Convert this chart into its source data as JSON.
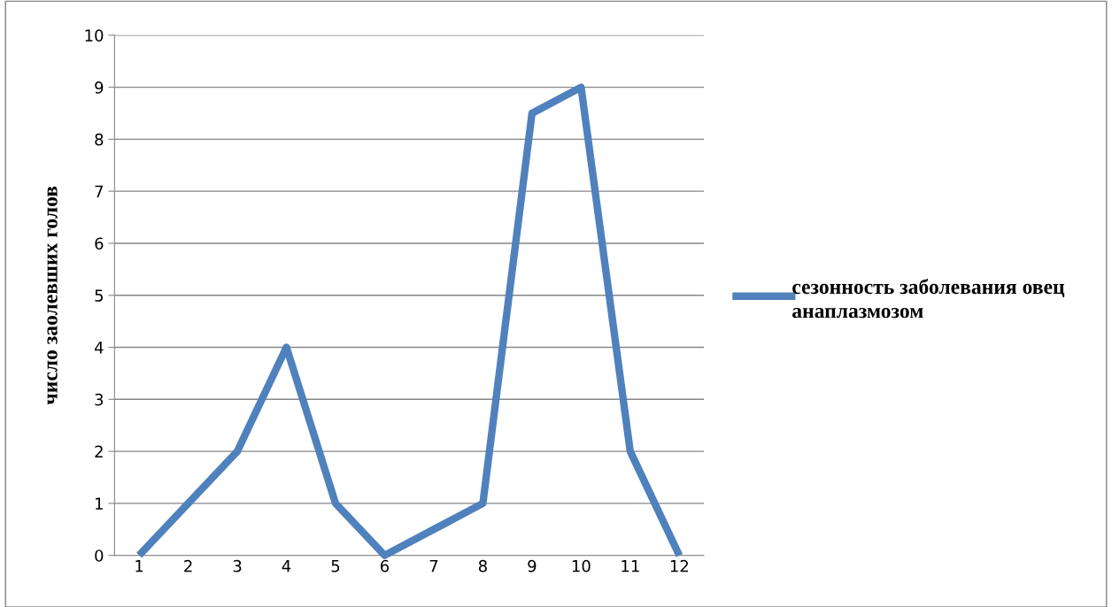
{
  "chart_data": {
    "type": "line",
    "ylabel": "число заолевших голов",
    "categories": [
      "1",
      "2",
      "3",
      "4",
      "5",
      "6",
      "7",
      "8",
      "9",
      "10",
      "11",
      "12"
    ],
    "series": [
      {
        "name": "сезонность заболевания овец анаплазмозом",
        "color": "#4f81bd",
        "values": [
          0,
          1,
          2,
          4,
          1,
          0,
          0.5,
          1,
          8.5,
          9,
          2,
          0
        ]
      }
    ],
    "ylim": [
      0,
      10
    ],
    "yticks": [
      0,
      1,
      2,
      3,
      4,
      5,
      6,
      7,
      8,
      9,
      10
    ],
    "grid": "y",
    "legend": "right",
    "marker": "none",
    "line_style": "solid"
  }
}
